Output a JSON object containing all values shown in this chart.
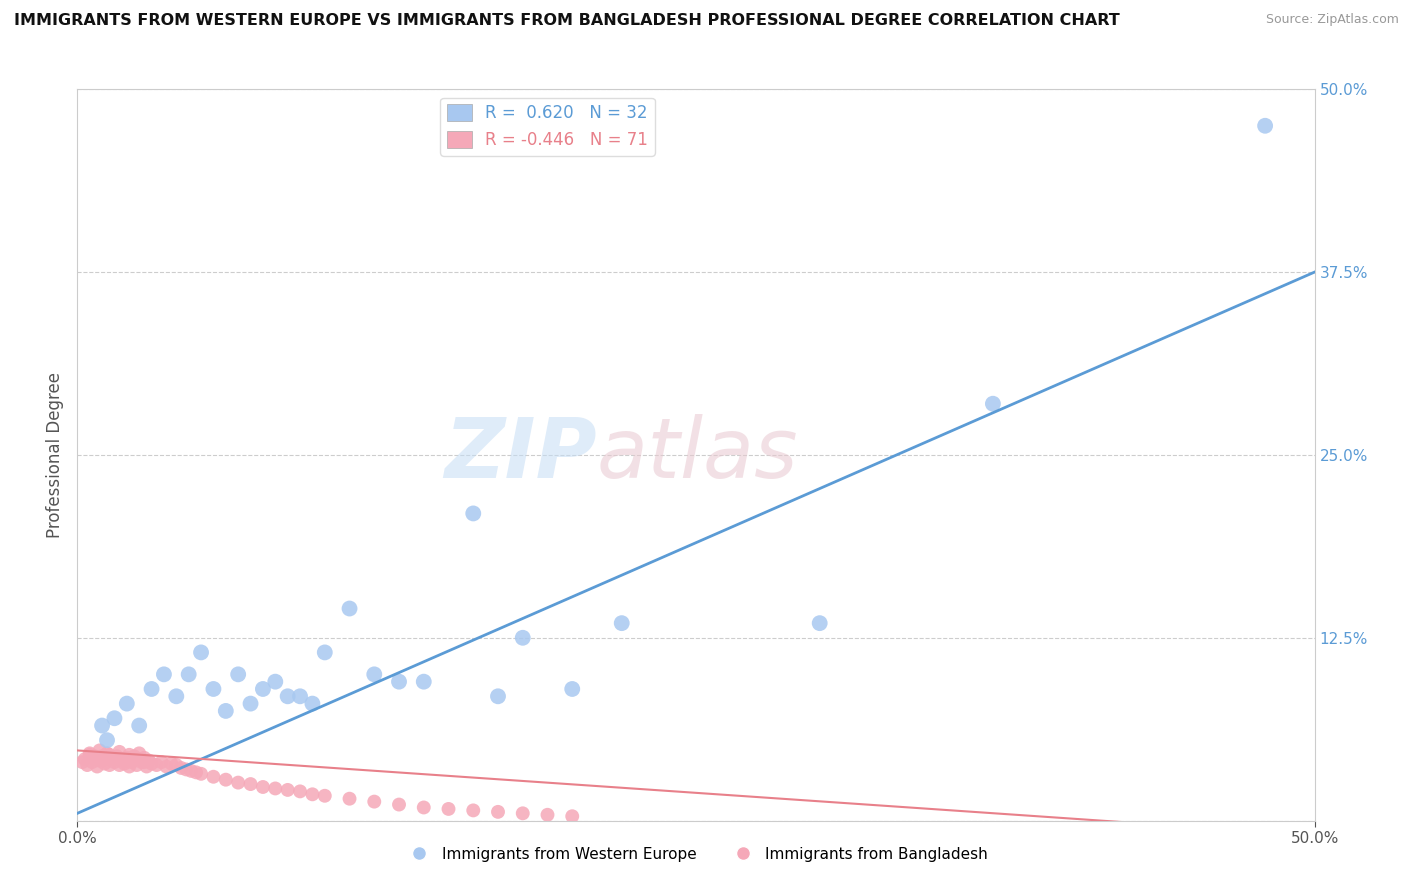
{
  "title": "IMMIGRANTS FROM WESTERN EUROPE VS IMMIGRANTS FROM BANGLADESH PROFESSIONAL DEGREE CORRELATION CHART",
  "source": "Source: ZipAtlas.com",
  "ylabel": "Professional Degree",
  "xlim": [
    0.0,
    0.5
  ],
  "ylim": [
    0.0,
    0.5
  ],
  "r_blue": 0.62,
  "n_blue": 32,
  "r_pink": -0.446,
  "n_pink": 71,
  "blue_color": "#a8c8f0",
  "pink_color": "#f5a8b8",
  "blue_line_color": "#5b9bd5",
  "pink_line_color": "#e8808a",
  "legend_label_blue": "Immigrants from Western Europe",
  "legend_label_pink": "Immigrants from Bangladesh",
  "background_color": "#ffffff",
  "grid_color": "#c8c8c8",
  "blue_scatter_x": [
    0.48,
    0.37,
    0.3,
    0.22,
    0.2,
    0.18,
    0.17,
    0.16,
    0.14,
    0.13,
    0.12,
    0.11,
    0.1,
    0.095,
    0.09,
    0.085,
    0.08,
    0.075,
    0.07,
    0.065,
    0.06,
    0.055,
    0.05,
    0.045,
    0.04,
    0.035,
    0.03,
    0.025,
    0.02,
    0.015,
    0.012,
    0.01
  ],
  "blue_scatter_y": [
    0.475,
    0.285,
    0.135,
    0.135,
    0.09,
    0.125,
    0.085,
    0.21,
    0.095,
    0.095,
    0.1,
    0.145,
    0.115,
    0.08,
    0.085,
    0.085,
    0.095,
    0.09,
    0.08,
    0.1,
    0.075,
    0.09,
    0.115,
    0.1,
    0.085,
    0.1,
    0.09,
    0.065,
    0.08,
    0.07,
    0.055,
    0.065
  ],
  "pink_scatter_x": [
    0.002,
    0.003,
    0.004,
    0.005,
    0.006,
    0.007,
    0.008,
    0.009,
    0.01,
    0.011,
    0.012,
    0.013,
    0.014,
    0.015,
    0.016,
    0.017,
    0.018,
    0.019,
    0.02,
    0.021,
    0.022,
    0.023,
    0.024,
    0.025,
    0.026,
    0.027,
    0.028,
    0.029,
    0.03,
    0.032,
    0.034,
    0.036,
    0.038,
    0.04,
    0.042,
    0.044,
    0.046,
    0.048,
    0.05,
    0.055,
    0.06,
    0.065,
    0.07,
    0.075,
    0.08,
    0.085,
    0.09,
    0.095,
    0.1,
    0.11,
    0.12,
    0.13,
    0.14,
    0.15,
    0.16,
    0.17,
    0.18,
    0.19,
    0.2,
    0.005,
    0.007,
    0.009,
    0.011,
    0.013,
    0.015,
    0.017,
    0.019,
    0.021,
    0.023,
    0.025,
    0.027
  ],
  "pink_scatter_y": [
    0.04,
    0.042,
    0.038,
    0.045,
    0.04,
    0.043,
    0.037,
    0.041,
    0.044,
    0.039,
    0.046,
    0.038,
    0.042,
    0.04,
    0.044,
    0.038,
    0.041,
    0.039,
    0.043,
    0.037,
    0.04,
    0.044,
    0.038,
    0.042,
    0.04,
    0.043,
    0.037,
    0.041,
    0.039,
    0.038,
    0.04,
    0.037,
    0.039,
    0.038,
    0.036,
    0.035,
    0.034,
    0.033,
    0.032,
    0.03,
    0.028,
    0.026,
    0.025,
    0.023,
    0.022,
    0.021,
    0.02,
    0.018,
    0.017,
    0.015,
    0.013,
    0.011,
    0.009,
    0.008,
    0.007,
    0.006,
    0.005,
    0.004,
    0.003,
    0.046,
    0.044,
    0.048,
    0.042,
    0.045,
    0.043,
    0.047,
    0.041,
    0.045,
    0.043,
    0.046,
    0.04
  ],
  "blue_line_x": [
    0.0,
    0.5
  ],
  "blue_line_y": [
    0.005,
    0.375
  ],
  "pink_line_x": [
    0.0,
    0.5
  ],
  "pink_line_y": [
    0.048,
    -0.01
  ]
}
